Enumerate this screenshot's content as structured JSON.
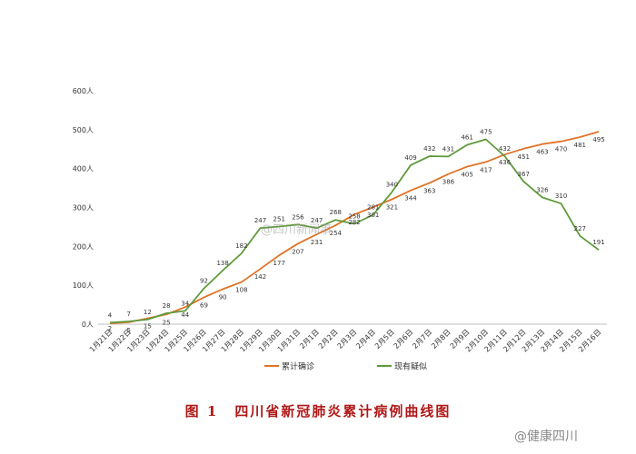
{
  "chart_data": {
    "type": "line",
    "title": "",
    "xlabel": "",
    "ylabel": "",
    "ylim": [
      0,
      600
    ],
    "y_ticks": [
      "0人",
      "100人",
      "200人",
      "300人",
      "400人",
      "500人",
      "600人"
    ],
    "grid": false,
    "legend_position": "bottom",
    "categories": [
      "1月21日",
      "1月22日",
      "1月23日",
      "1月24日",
      "1月25日",
      "1月26日",
      "1月27日",
      "1月28日",
      "1月29日",
      "1月30日",
      "1月31日",
      "2月1日",
      "2月2日",
      "2月3日",
      "2月4日",
      "2月5日",
      "2月6日",
      "2月7日",
      "2月8日",
      "2月9日",
      "2月10日",
      "2月11日",
      "2月12日",
      "2月13日",
      "2月14日",
      "2月15日",
      "2月16日"
    ],
    "series": [
      {
        "name": "累计确诊",
        "color": "#e07327",
        "values": [
          2,
          5,
          15,
          25,
          44,
          69,
          90,
          108,
          142,
          177,
          207,
          231,
          254,
          282,
          301,
          321,
          344,
          363,
          386,
          405,
          417,
          436,
          451,
          463,
          470,
          481,
          495
        ]
      },
      {
        "name": "现有疑似",
        "color": "#5f9a3c",
        "values": [
          4,
          7,
          12,
          28,
          34,
          92,
          138,
          182,
          247,
          251,
          256,
          247,
          268,
          258,
          281,
          340,
          409,
          432,
          431,
          461,
          475,
          432,
          367,
          326,
          310,
          227,
          191
        ]
      }
    ]
  },
  "caption": {
    "figure_number": "图 1",
    "text": "四川省新冠肺炎累计病例曲线图"
  },
  "watermarks": {
    "center": "@四川新闻事",
    "corner": "@健康四川"
  }
}
